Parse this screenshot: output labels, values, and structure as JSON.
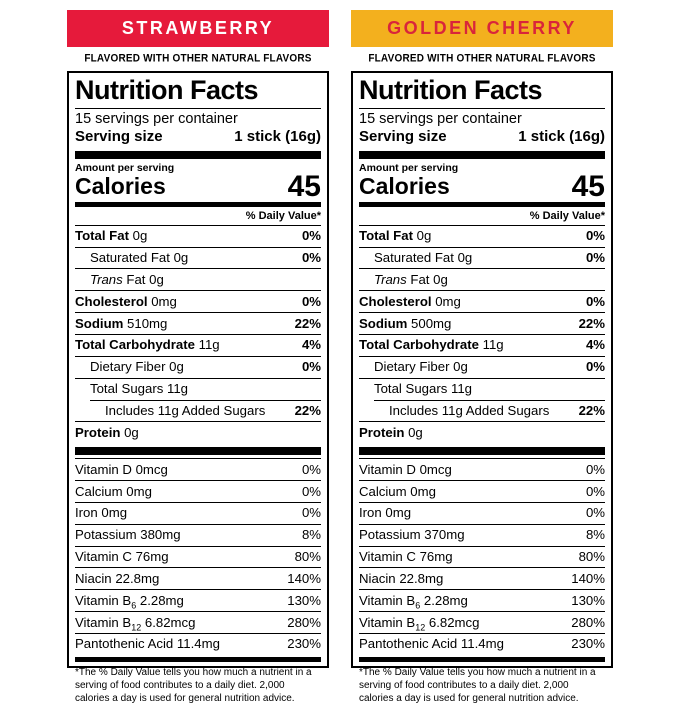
{
  "labels": [
    {
      "flavor": "STRAWBERRY",
      "banner_bg": "#E61A3B",
      "banner_text_color": "#FFFFFF",
      "subtitle": "FLAVORED WITH OTHER NATURAL FLAVORS",
      "title": "Nutrition Facts",
      "servings_per_container": "15 servings per container",
      "serving_size_label": "Serving size",
      "serving_size_value": "1 stick (16g)",
      "amount_per_serving_label": "Amount per serving",
      "calories_label": "Calories",
      "calories_value": "45",
      "daily_value_header": "% Daily Value*",
      "main_rows": [
        {
          "name": "Total Fat",
          "amount": "0g",
          "dv": "0%",
          "bold": true
        },
        {
          "name": "Saturated Fat",
          "amount": "0g",
          "dv": "0%",
          "indent": 1
        },
        {
          "name_italic": "Trans",
          "name": " Fat",
          "amount": "0g",
          "dv": "",
          "indent": 1
        },
        {
          "name": "Cholesterol",
          "amount": "0mg",
          "dv": "0%",
          "bold": true
        },
        {
          "name": "Sodium",
          "amount": "510mg",
          "dv": "22%",
          "bold": true
        },
        {
          "name": "Total Carbohydrate",
          "amount": "11g",
          "dv": "4%",
          "bold": true
        },
        {
          "name": "Dietary Fiber",
          "amount": "0g",
          "dv": "0%",
          "indent": 1
        },
        {
          "name": "Total Sugars",
          "amount": "11g",
          "dv": "",
          "indent": 1
        },
        {
          "name": "Includes 11g Added Sugars",
          "amount": "",
          "dv": "22%",
          "indent": 2,
          "partial_divider": true
        },
        {
          "name": "Protein",
          "amount": "0g",
          "dv": "",
          "bold": true
        }
      ],
      "vitamin_rows": [
        {
          "name": "Vitamin D",
          "amount": "0mcg",
          "dv": "0%"
        },
        {
          "name": "Calcium",
          "amount": "0mg",
          "dv": "0%"
        },
        {
          "name": "Iron",
          "amount": "0mg",
          "dv": "0%"
        },
        {
          "name": "Potassium",
          "amount": "380mg",
          "dv": "8%"
        },
        {
          "name": "Vitamin C",
          "amount": "76mg",
          "dv": "80%"
        },
        {
          "name": "Niacin",
          "amount": "22.8mg",
          "dv": "140%"
        },
        {
          "name": "Vitamin B",
          "sub": "6",
          "amount": "2.28mg",
          "dv": "130%"
        },
        {
          "name": "Vitamin B",
          "sub": "12",
          "amount": "6.82mcg",
          "dv": "280%"
        },
        {
          "name": "Pantothenic Acid",
          "amount": "11.4mg",
          "dv": "230%"
        }
      ],
      "footnote": "*The % Daily Value tells you how much a nutrient in a serving of food contributes to a daily diet. 2,000 calories a day is used for general nutrition advice."
    },
    {
      "flavor": "GOLDEN CHERRY",
      "banner_bg": "#F3B01E",
      "banner_text_color": "#D9253B",
      "subtitle": "FLAVORED WITH OTHER NATURAL FLAVORS",
      "title": "Nutrition Facts",
      "servings_per_container": "15 servings per container",
      "serving_size_label": "Serving size",
      "serving_size_value": "1 stick (16g)",
      "amount_per_serving_label": "Amount per serving",
      "calories_label": "Calories",
      "calories_value": "45",
      "daily_value_header": "% Daily Value*",
      "main_rows": [
        {
          "name": "Total Fat",
          "amount": "0g",
          "dv": "0%",
          "bold": true
        },
        {
          "name": "Saturated Fat",
          "amount": "0g",
          "dv": "0%",
          "indent": 1
        },
        {
          "name_italic": "Trans",
          "name": " Fat",
          "amount": "0g",
          "dv": "",
          "indent": 1
        },
        {
          "name": "Cholesterol",
          "amount": "0mg",
          "dv": "0%",
          "bold": true
        },
        {
          "name": "Sodium",
          "amount": "500mg",
          "dv": "22%",
          "bold": true
        },
        {
          "name": "Total Carbohydrate",
          "amount": "11g",
          "dv": "4%",
          "bold": true
        },
        {
          "name": "Dietary Fiber",
          "amount": "0g",
          "dv": "0%",
          "indent": 1
        },
        {
          "name": "Total Sugars",
          "amount": "11g",
          "dv": "",
          "indent": 1
        },
        {
          "name": "Includes 11g Added Sugars",
          "amount": "",
          "dv": "22%",
          "indent": 2,
          "partial_divider": true
        },
        {
          "name": "Protein",
          "amount": "0g",
          "dv": "",
          "bold": true
        }
      ],
      "vitamin_rows": [
        {
          "name": "Vitamin D",
          "amount": "0mcg",
          "dv": "0%"
        },
        {
          "name": "Calcium",
          "amount": "0mg",
          "dv": "0%"
        },
        {
          "name": "Iron",
          "amount": "0mg",
          "dv": "0%"
        },
        {
          "name": "Potassium",
          "amount": "370mg",
          "dv": "8%"
        },
        {
          "name": "Vitamin C",
          "amount": "76mg",
          "dv": "80%"
        },
        {
          "name": "Niacin",
          "amount": "22.8mg",
          "dv": "140%"
        },
        {
          "name": "Vitamin B",
          "sub": "6",
          "amount": "2.28mg",
          "dv": "130%"
        },
        {
          "name": "Vitamin B",
          "sub": "12",
          "amount": "6.82mcg",
          "dv": "280%"
        },
        {
          "name": "Pantothenic Acid",
          "amount": "11.4mg",
          "dv": "230%"
        }
      ],
      "footnote": "*The % Daily Value tells you how much a nutrient in a serving of food contributes to a daily diet. 2,000 calories a day is used for general nutrition advice."
    }
  ]
}
